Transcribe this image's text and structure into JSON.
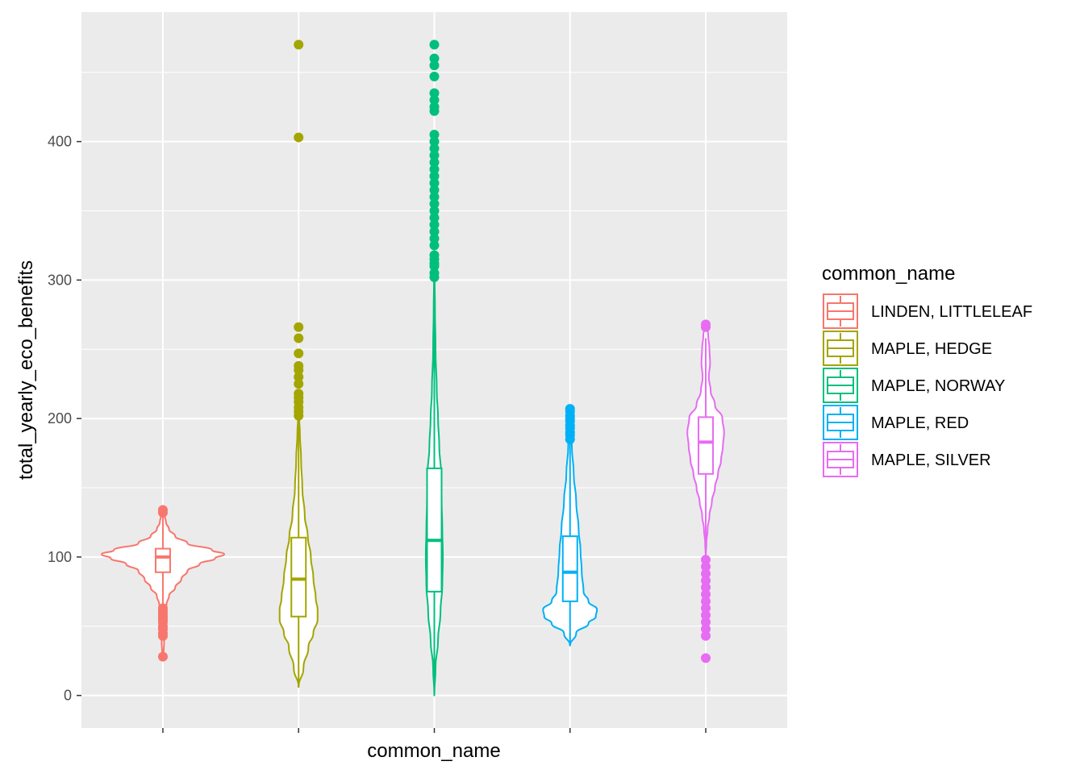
{
  "chart_data": {
    "type": "violin",
    "xlabel": "common_name",
    "ylabel": "total_yearly_eco_benefits",
    "ylim": [
      -23.5,
      493.5
    ],
    "y_ticks": [
      0,
      100,
      200,
      300,
      400
    ],
    "x_tick_labels_visible": false,
    "grid": true,
    "legend": {
      "title": "common_name",
      "placement": "right",
      "entries": [
        "LINDEN, LITTLELEAF",
        "MAPLE, HEDGE",
        "MAPLE, NORWAY",
        "MAPLE, RED",
        "MAPLE, SILVER"
      ]
    },
    "series": [
      {
        "name": "LINDEN, LITTLELEAF",
        "color": "#F8766D",
        "box": {
          "q1": 89,
          "median": 100,
          "q3": 106,
          "whisker_low": 63,
          "whisker_high": 130
        },
        "violin": [
          [
            28,
            0.01
          ],
          [
            40,
            0.02
          ],
          [
            50,
            0.03
          ],
          [
            60,
            0.04
          ],
          [
            66,
            0.06
          ],
          [
            72,
            0.1
          ],
          [
            78,
            0.2
          ],
          [
            84,
            0.3
          ],
          [
            90,
            0.4
          ],
          [
            95,
            0.6
          ],
          [
            99,
            0.85
          ],
          [
            102,
            1.0
          ],
          [
            105,
            0.8
          ],
          [
            110,
            0.4
          ],
          [
            115,
            0.2
          ],
          [
            120,
            0.1
          ],
          [
            125,
            0.05
          ],
          [
            130,
            0.03
          ],
          [
            134,
            0.01
          ]
        ],
        "outliers": [
          28,
          43,
          45,
          48,
          50,
          53,
          55,
          57,
          59,
          61,
          63,
          132,
          134
        ]
      },
      {
        "name": "MAPLE, HEDGE",
        "color": "#A3A500",
        "box": {
          "q1": 57,
          "median": 84,
          "q3": 114,
          "whisker_low": 6,
          "whisker_high": 199
        },
        "violin": [
          [
            6,
            0.0
          ],
          [
            20,
            0.08
          ],
          [
            35,
            0.16
          ],
          [
            45,
            0.24
          ],
          [
            55,
            0.31
          ],
          [
            62,
            0.31
          ],
          [
            70,
            0.28
          ],
          [
            85,
            0.24
          ],
          [
            100,
            0.2
          ],
          [
            115,
            0.15
          ],
          [
            130,
            0.1
          ],
          [
            150,
            0.06
          ],
          [
            170,
            0.04
          ],
          [
            190,
            0.02
          ],
          [
            200,
            0.01
          ],
          [
            210,
            0.0
          ]
        ],
        "outliers": [
          202,
          205,
          208,
          212,
          215,
          218,
          225,
          230,
          235,
          238,
          247,
          258,
          266,
          403,
          470
        ]
      },
      {
        "name": "MAPLE, NORWAY",
        "color": "#00BF7D",
        "box": {
          "q1": 75,
          "median": 112,
          "q3": 164,
          "whisker_low": 0,
          "whisker_high": 300
        },
        "violin": [
          [
            0,
            0.0
          ],
          [
            20,
            0.02
          ],
          [
            40,
            0.06
          ],
          [
            60,
            0.1
          ],
          [
            80,
            0.13
          ],
          [
            100,
            0.14
          ],
          [
            120,
            0.13
          ],
          [
            140,
            0.12
          ],
          [
            160,
            0.11
          ],
          [
            180,
            0.08
          ],
          [
            200,
            0.06
          ],
          [
            220,
            0.04
          ],
          [
            250,
            0.02
          ],
          [
            280,
            0.01
          ],
          [
            300,
            0.005
          ],
          [
            310,
            0.0
          ]
        ],
        "outliers": [
          302,
          305,
          310,
          312,
          315,
          318,
          325,
          330,
          335,
          340,
          345,
          350,
          355,
          360,
          365,
          370,
          375,
          380,
          385,
          390,
          395,
          400,
          405,
          422,
          425,
          430,
          435,
          447,
          455,
          460,
          470
        ]
      },
      {
        "name": "MAPLE, RED",
        "color": "#00B0F6",
        "box": {
          "q1": 68,
          "median": 89,
          "q3": 115,
          "whisker_low": 36,
          "whisker_high": 183
        },
        "violin": [
          [
            36,
            0.0
          ],
          [
            45,
            0.1
          ],
          [
            52,
            0.3
          ],
          [
            57,
            0.42
          ],
          [
            62,
            0.44
          ],
          [
            68,
            0.3
          ],
          [
            75,
            0.22
          ],
          [
            90,
            0.19
          ],
          [
            105,
            0.17
          ],
          [
            120,
            0.14
          ],
          [
            140,
            0.1
          ],
          [
            160,
            0.06
          ],
          [
            180,
            0.03
          ],
          [
            195,
            0.02
          ],
          [
            205,
            0.0
          ]
        ],
        "outliers": [
          185,
          188,
          190,
          193,
          195,
          198,
          200,
          202,
          205,
          207
        ]
      },
      {
        "name": "MAPLE, SILVER",
        "color": "#E76BF3",
        "box": {
          "q1": 160,
          "median": 183,
          "q3": 201,
          "whisker_low": 102,
          "whisker_high": 258
        },
        "violin": [
          [
            100,
            0.0
          ],
          [
            110,
            0.01
          ],
          [
            120,
            0.03
          ],
          [
            130,
            0.06
          ],
          [
            140,
            0.1
          ],
          [
            150,
            0.15
          ],
          [
            160,
            0.2
          ],
          [
            170,
            0.25
          ],
          [
            180,
            0.28
          ],
          [
            190,
            0.3
          ],
          [
            200,
            0.27
          ],
          [
            210,
            0.15
          ],
          [
            220,
            0.08
          ],
          [
            230,
            0.05
          ],
          [
            240,
            0.07
          ],
          [
            250,
            0.06
          ],
          [
            260,
            0.04
          ],
          [
            268,
            0.01
          ],
          [
            270,
            0.0
          ]
        ],
        "outliers": [
          27,
          43,
          48,
          53,
          58,
          63,
          68,
          73,
          78,
          83,
          88,
          93,
          98,
          266,
          268
        ]
      }
    ]
  }
}
